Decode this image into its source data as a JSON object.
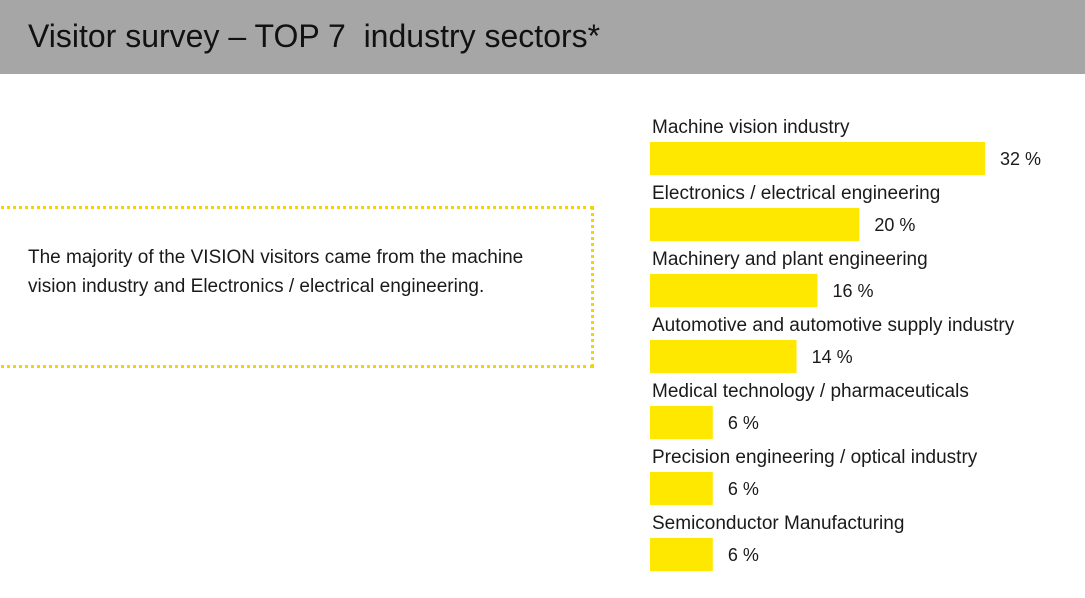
{
  "title": "Visitor survey – TOP 7  industry sectors*",
  "callout": {
    "text": "The majority of the VISION visitors came from the machine vision industry and Electronics / electrical engineering."
  },
  "colors": {
    "title_bar": "#a6a6a6",
    "bar": "#ffe800",
    "callout_border": "#f2d600"
  },
  "chart_data": {
    "type": "bar",
    "orientation": "horizontal",
    "categories": [
      "Machine vision industry",
      "Electronics / electrical engineering",
      "Machinery and plant engineering",
      "Automotive and automotive supply industry",
      "Medical technology / pharmaceuticals",
      "Precision engineering / optical industry",
      "Semiconductor Manufacturing"
    ],
    "values": [
      32,
      20,
      16,
      14,
      6,
      6,
      6
    ],
    "value_labels": [
      "32 %",
      "20 %",
      "16 %",
      "14 %",
      "6 %",
      "6 %",
      "6 %"
    ],
    "unit": "%",
    "xlim": [
      0,
      32
    ],
    "grid": false,
    "legend": "none"
  }
}
